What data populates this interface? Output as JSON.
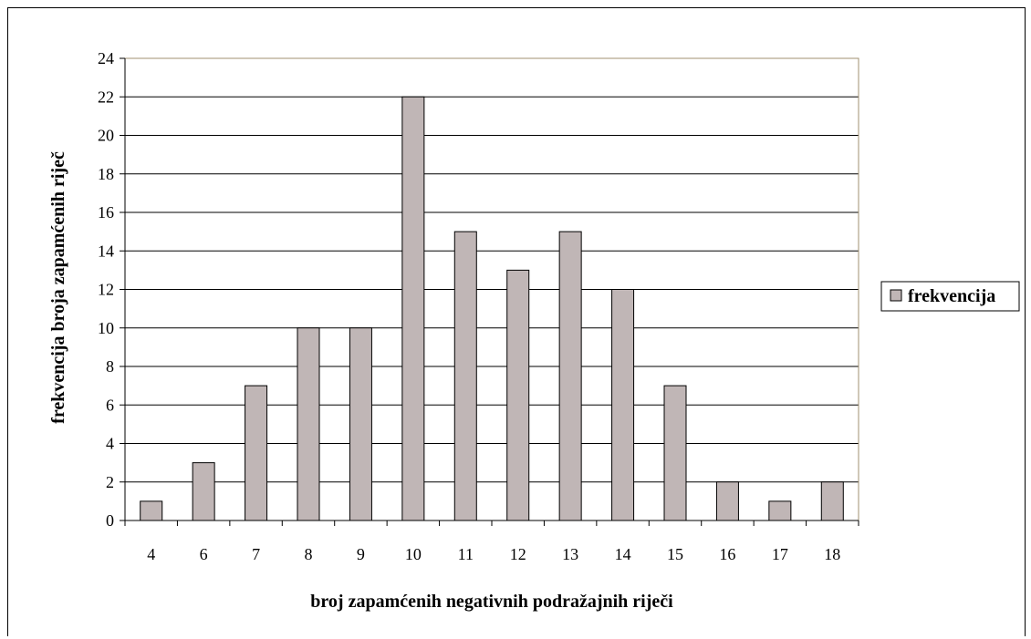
{
  "chart_data": {
    "type": "bar",
    "title": "",
    "xlabel": "broj zapamćenih negativnih podražajnih riječi",
    "ylabel": "frekvencija broja zapamćenih riječ",
    "categories": [
      "4",
      "6",
      "7",
      "8",
      "9",
      "10",
      "11",
      "12",
      "13",
      "14",
      "15",
      "16",
      "17",
      "18"
    ],
    "series": [
      {
        "name": "frekvencija",
        "values": [
          1,
          3,
          7,
          10,
          10,
          22,
          15,
          13,
          15,
          12,
          7,
          2,
          1,
          2
        ]
      }
    ],
    "ylim": [
      0,
      24
    ],
    "yticks": [
      0,
      2,
      4,
      6,
      8,
      10,
      12,
      14,
      16,
      18,
      20,
      22,
      24
    ],
    "grid": "horizontal",
    "legend_position": "right",
    "colors": {
      "bar_fill": "#c0b6b6",
      "bar_stroke": "#000000",
      "grid": "#000000",
      "plot_border": "#a09070"
    }
  }
}
